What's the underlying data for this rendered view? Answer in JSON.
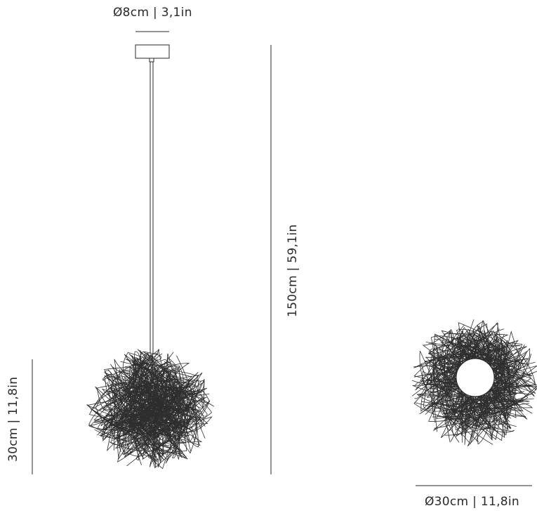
{
  "dimensions": {
    "canopy_diameter": "Ø8cm | 3,1in",
    "overall_height": "150cm | 59,1in",
    "shade_height": "30cm | 11,8in",
    "shade_diameter": "Ø30cm | 11,8in"
  }
}
